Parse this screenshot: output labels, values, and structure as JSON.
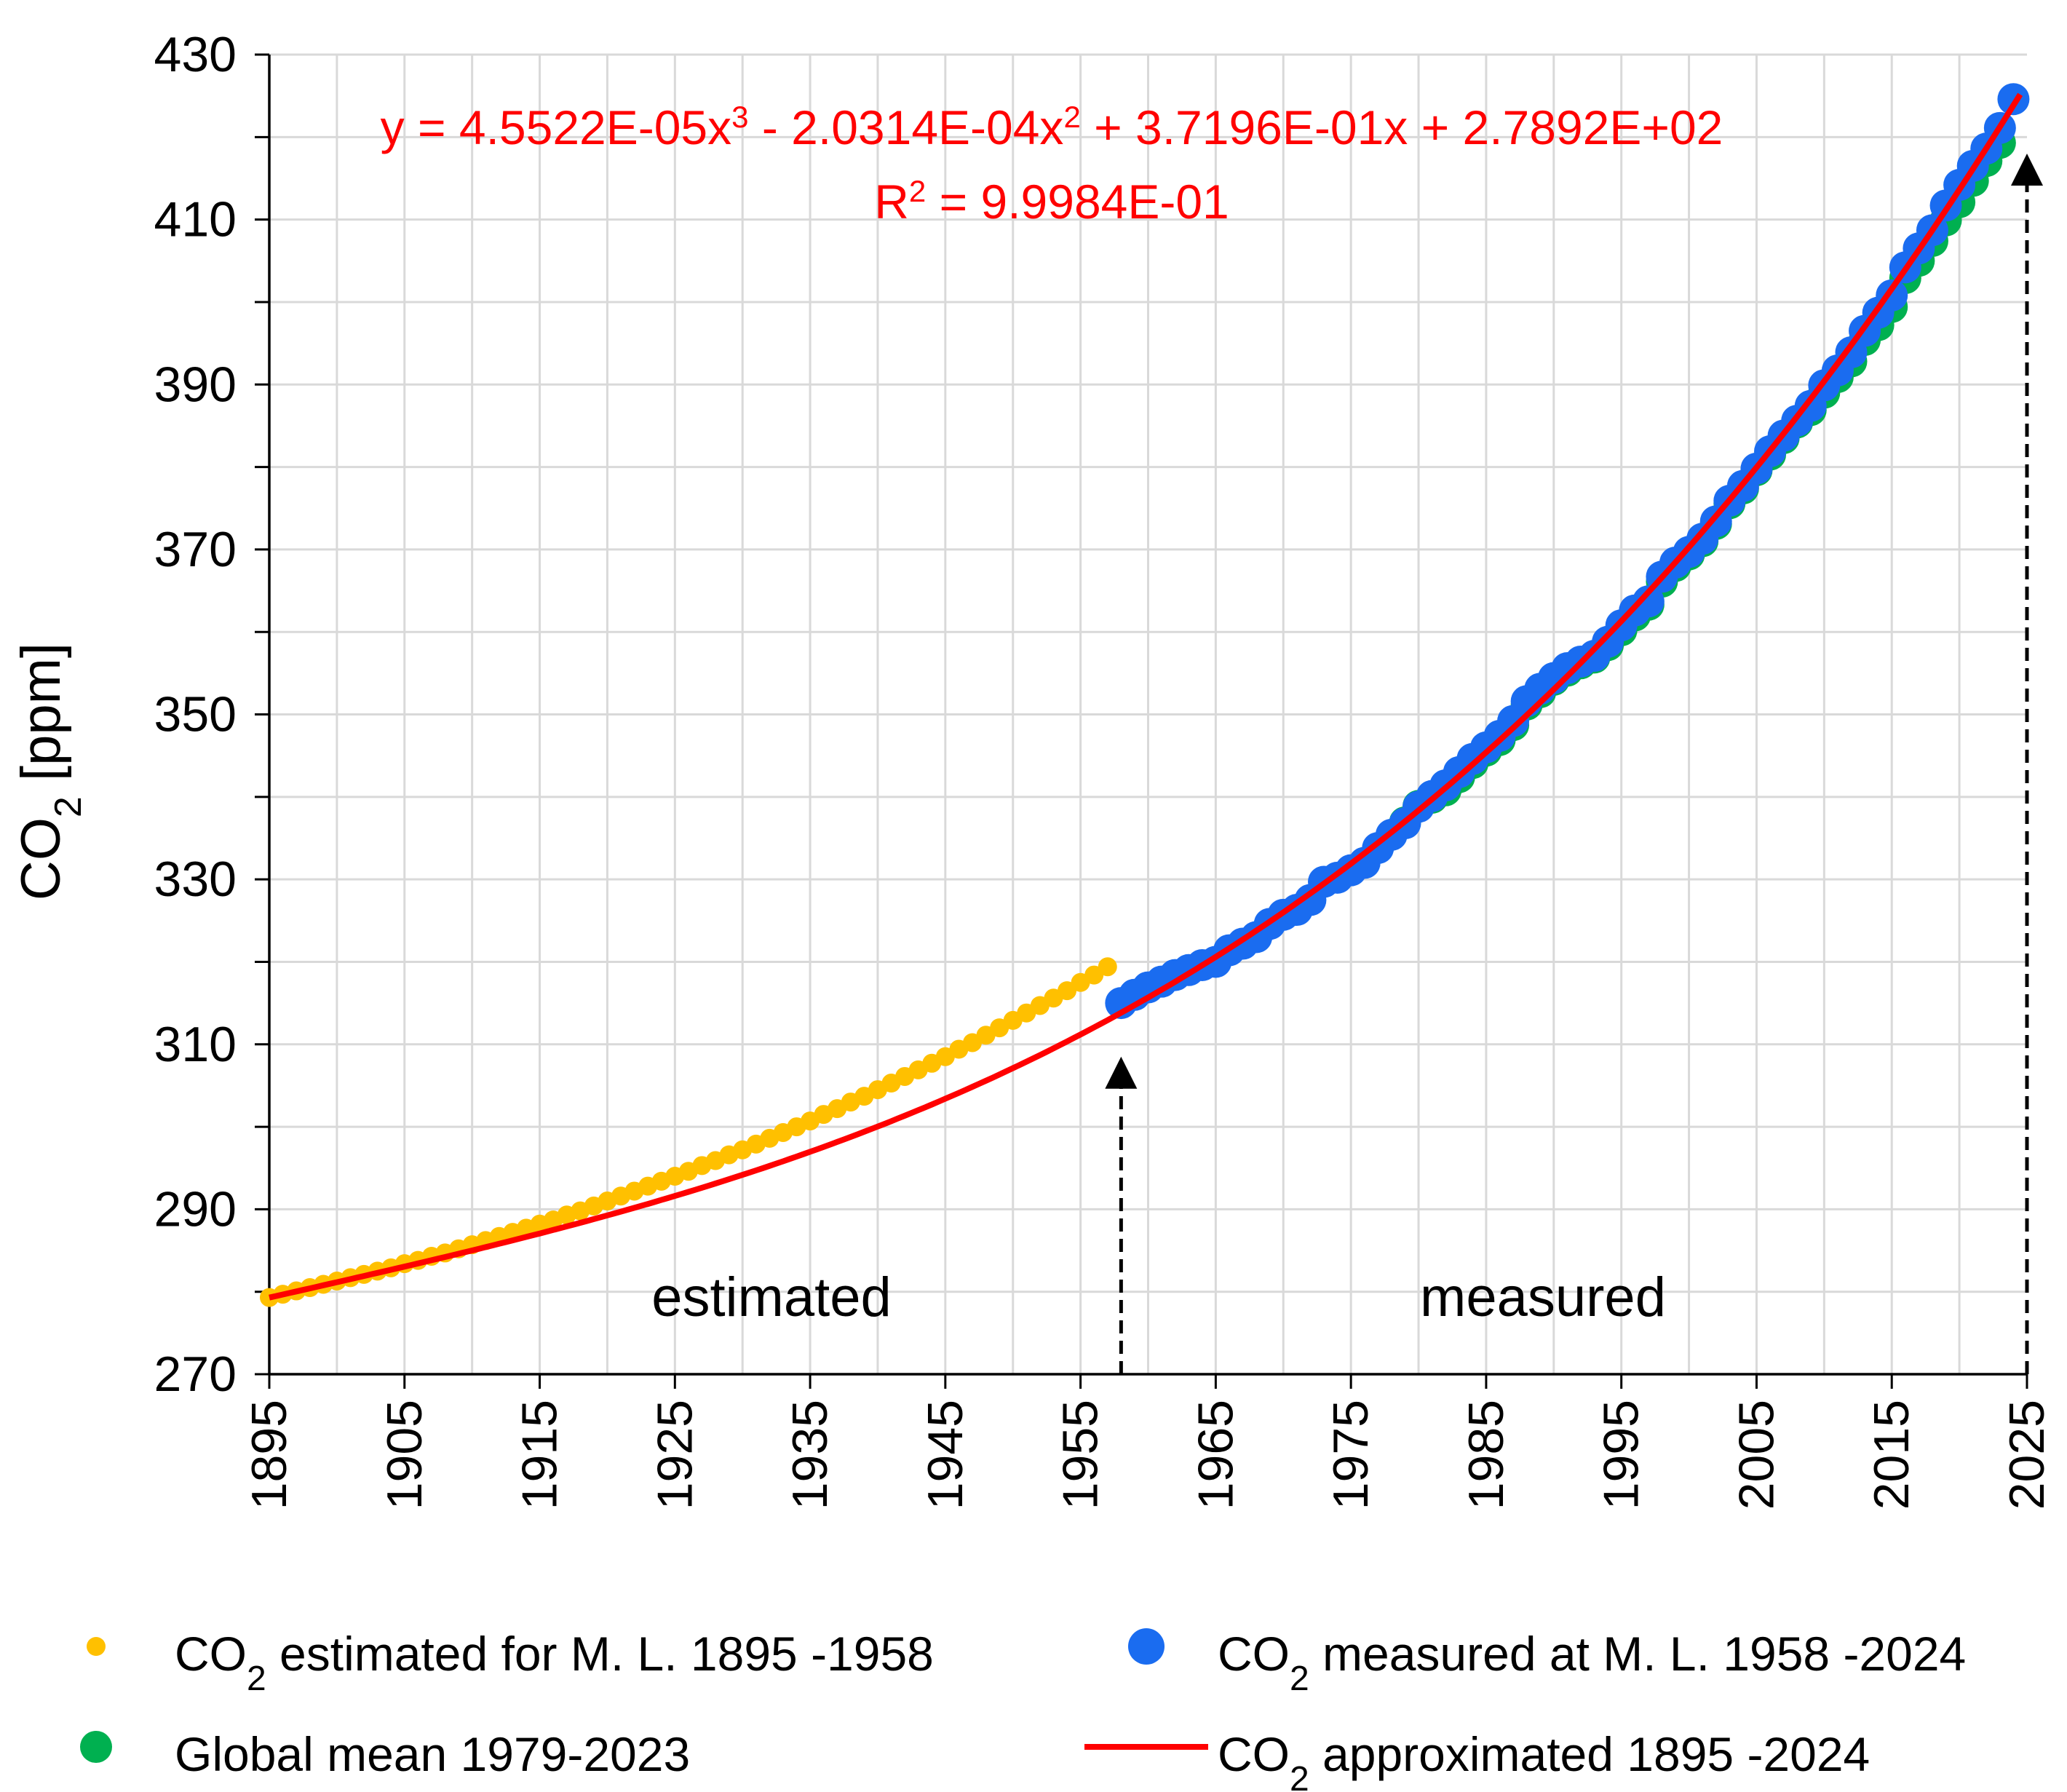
{
  "chart_data": {
    "type": "scatter",
    "ylabel_main": "CO",
    "ylabel_sub": "2",
    "ylabel_tail": " [ppm]",
    "xlabel": "",
    "xlim": [
      1895,
      2025
    ],
    "ylim": [
      270,
      430
    ],
    "yticks": [
      "270",
      "290",
      "310",
      "330",
      "350",
      "370",
      "390",
      "410",
      "430"
    ],
    "xticks": [
      "1895",
      "1905",
      "1915",
      "1925",
      "1935",
      "1945",
      "1955",
      "1965",
      "1975",
      "1985",
      "1995",
      "2005",
      "2015",
      "2025"
    ],
    "equation": {
      "pre1": "y = 4.5522E-05x",
      "sup1": "3",
      "pre2": " - 2.0314E-04x",
      "sup2": "2",
      "tail": " + 3.7196E-01x + 2.7892E+02",
      "r_pre": "R",
      "r_sup": "2",
      "r_val": " = 9.9984E-01"
    },
    "fit": {
      "a": 4.5522e-05,
      "b": -0.00020314,
      "c": 0.37196,
      "d": 278.92,
      "x_origin": 1894,
      "x_from": 1895,
      "x_to": 2024.9
    },
    "annotations": {
      "estimated": "estimated",
      "measured": "measured",
      "arrow_years": [
        1958,
        2025
      ]
    },
    "series": [
      {
        "name": "CO2 estimated for M. L. 1895 -1958",
        "color": "#ffc000",
        "marker": "small",
        "x": [
          1895,
          1896,
          1897,
          1898,
          1899,
          1900,
          1901,
          1902,
          1903,
          1904,
          1905,
          1906,
          1907,
          1908,
          1909,
          1910,
          1911,
          1912,
          1913,
          1914,
          1915,
          1916,
          1917,
          1918,
          1919,
          1920,
          1921,
          1922,
          1923,
          1924,
          1925,
          1926,
          1927,
          1928,
          1929,
          1930,
          1931,
          1932,
          1933,
          1934,
          1935,
          1936,
          1937,
          1938,
          1939,
          1940,
          1941,
          1942,
          1943,
          1944,
          1945,
          1946,
          1947,
          1948,
          1949,
          1950,
          1951,
          1952,
          1953,
          1954,
          1955,
          1956,
          1957
        ],
        "y": [
          279.3,
          279.7,
          280.1,
          280.5,
          280.9,
          281.3,
          281.7,
          282.1,
          282.5,
          282.9,
          283.4,
          283.8,
          284.3,
          284.7,
          285.2,
          285.7,
          286.2,
          286.7,
          287.2,
          287.7,
          288.2,
          288.7,
          289.3,
          289.8,
          290.4,
          291.0,
          291.6,
          292.2,
          292.8,
          293.4,
          294.0,
          294.6,
          295.3,
          295.9,
          296.6,
          297.2,
          297.9,
          298.6,
          299.3,
          300.0,
          300.7,
          301.5,
          302.2,
          303.0,
          303.7,
          304.5,
          305.3,
          306.1,
          306.9,
          307.7,
          308.5,
          309.4,
          310.2,
          311.1,
          312.0,
          312.9,
          313.8,
          314.7,
          315.6,
          316.5,
          317.5,
          318.4,
          319.4
        ]
      },
      {
        "name": "CO2 measured at M. L. 1958 -2024",
        "color": "#1a6cf0",
        "marker": "large",
        "x": [
          1958,
          1959,
          1960,
          1961,
          1962,
          1963,
          1964,
          1965,
          1966,
          1967,
          1968,
          1969,
          1970,
          1971,
          1972,
          1973,
          1974,
          1975,
          1976,
          1977,
          1978,
          1979,
          1980,
          1981,
          1982,
          1983,
          1984,
          1985,
          1986,
          1987,
          1988,
          1989,
          1990,
          1991,
          1992,
          1993,
          1994,
          1995,
          1996,
          1997,
          1998,
          1999,
          2000,
          2001,
          2002,
          2003,
          2004,
          2005,
          2006,
          2007,
          2008,
          2009,
          2010,
          2011,
          2012,
          2013,
          2014,
          2015,
          2016,
          2017,
          2018,
          2019,
          2020,
          2021,
          2022,
          2023,
          2024
        ],
        "y": [
          315.0,
          316.0,
          316.9,
          317.6,
          318.4,
          319.0,
          319.6,
          320.0,
          321.4,
          322.2,
          323.0,
          324.6,
          325.7,
          326.3,
          327.5,
          329.7,
          330.2,
          331.1,
          332.0,
          333.8,
          335.4,
          336.8,
          338.8,
          340.1,
          341.4,
          343.0,
          344.6,
          346.0,
          347.4,
          349.2,
          351.6,
          353.1,
          354.4,
          355.6,
          356.4,
          357.1,
          358.8,
          360.8,
          362.6,
          363.7,
          366.7,
          368.4,
          369.7,
          371.3,
          373.4,
          375.9,
          377.7,
          379.8,
          381.9,
          383.8,
          385.6,
          387.4,
          389.9,
          391.7,
          393.9,
          396.5,
          398.7,
          400.8,
          404.2,
          406.5,
          408.7,
          411.7,
          414.2,
          416.5,
          418.6,
          421.1,
          424.6
        ]
      },
      {
        "name": "Global mean 1979-2023",
        "color": "#00b050",
        "marker": "large",
        "x": [
          1979,
          1980,
          1981,
          1982,
          1983,
          1984,
          1985,
          1986,
          1987,
          1988,
          1989,
          1990,
          1991,
          1992,
          1993,
          1994,
          1995,
          1996,
          1997,
          1998,
          1999,
          2000,
          2001,
          2002,
          2003,
          2004,
          2005,
          2006,
          2007,
          2008,
          2009,
          2010,
          2011,
          2012,
          2013,
          2014,
          2015,
          2016,
          2017,
          2018,
          2019,
          2020,
          2021,
          2022,
          2023
        ],
        "y": [
          336.9,
          338.9,
          339.9,
          340.8,
          342.4,
          344.1,
          345.6,
          346.9,
          348.7,
          351.2,
          352.7,
          354.2,
          355.3,
          356.2,
          356.9,
          358.4,
          360.2,
          362.0,
          363.3,
          366.1,
          368.0,
          369.4,
          371.0,
          373.1,
          375.6,
          377.4,
          379.6,
          381.5,
          383.5,
          385.4,
          386.9,
          389.0,
          390.9,
          392.8,
          395.4,
          397.2,
          399.4,
          402.9,
          405.0,
          407.4,
          409.9,
          412.1,
          414.7,
          417.1,
          419.3
        ]
      },
      {
        "name": "CO2 approximated 1895 -2024",
        "color": "#ff0000",
        "marker": "line"
      }
    ],
    "legend": [
      {
        "pre": "CO",
        "sub": "2",
        "post": " estimated for M. L. 1895  -1958",
        "color": "#ffc000",
        "symbol": "dot-small"
      },
      {
        "pre": "CO",
        "sub": "2",
        "post": " measured  at M. L. 1958  -2024",
        "color": "#1a6cf0",
        "symbol": "dot-large"
      },
      {
        "pre": "",
        "sub": "",
        "post": "Global mean 1979-2023",
        "color": "#00b050",
        "symbol": "dot-large"
      },
      {
        "pre": "CO",
        "sub": "2",
        "post": " approximated 1895 -2024",
        "color": "#ff0000",
        "symbol": "line"
      }
    ]
  }
}
